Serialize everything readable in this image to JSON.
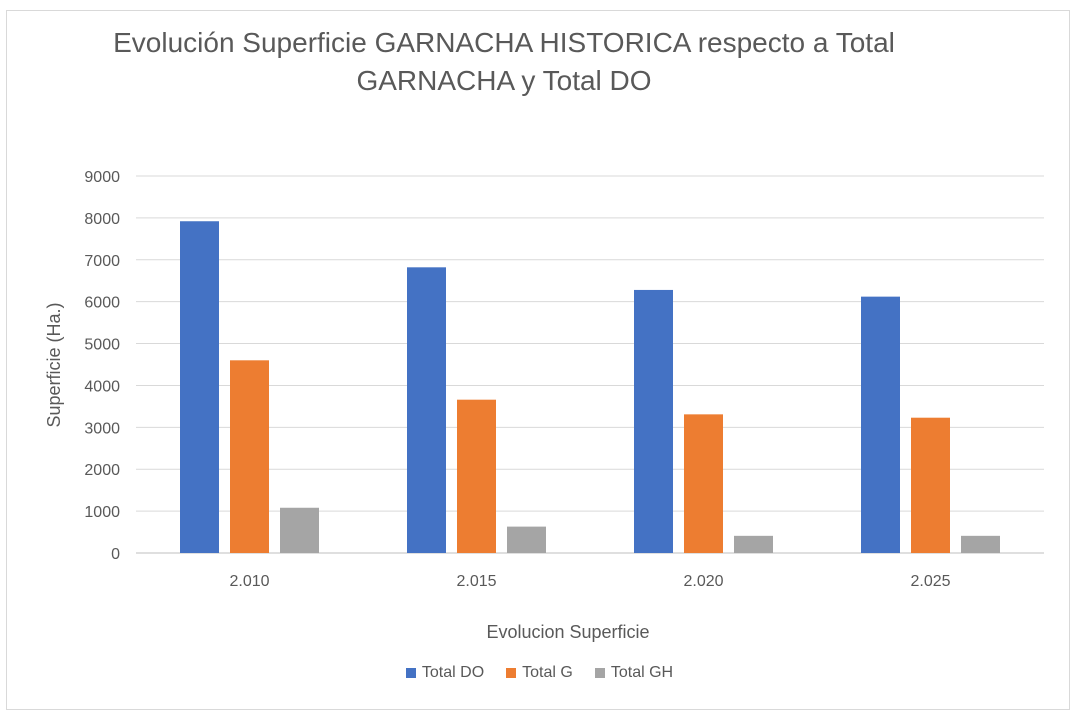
{
  "chart_data": {
    "type": "bar",
    "title_line1": "Evolución Superficie GARNACHA HISTORICA respecto a Total",
    "title_line2": "GARNACHA y Total DO",
    "xlabel": "Evolucion Superficie",
    "ylabel": "Superficie (Ha.)",
    "categories": [
      "2.010",
      "2.015",
      "2.020",
      "2.025"
    ],
    "ylim": [
      0,
      9000
    ],
    "yticks": [
      0,
      1000,
      2000,
      3000,
      4000,
      5000,
      6000,
      7000,
      8000,
      9000
    ],
    "grid": true,
    "legend_position": "bottom",
    "series": [
      {
        "name": "Total DO",
        "color": "#4472c4",
        "values": [
          7920,
          6820,
          6280,
          6120
        ]
      },
      {
        "name": "Total G",
        "color": "#ed7d31",
        "values": [
          4600,
          3660,
          3310,
          3230
        ]
      },
      {
        "name": "Total GH",
        "color": "#a5a5a5",
        "values": [
          1080,
          630,
          410,
          410
        ]
      }
    ]
  }
}
